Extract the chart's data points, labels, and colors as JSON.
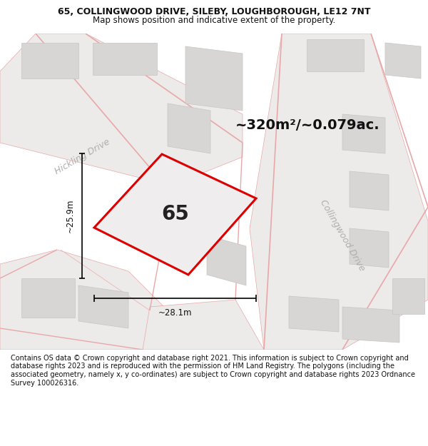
{
  "title_line1": "65, COLLINGWOOD DRIVE, SILEBY, LOUGHBOROUGH, LE12 7NT",
  "title_line2": "Map shows position and indicative extent of the property.",
  "footer": "Contains OS data © Crown copyright and database right 2021. This information is subject to Crown copyright and database rights 2023 and is reproduced with the permission of HM Land Registry. The polygons (including the associated geometry, namely x, y co-ordinates) are subject to Crown copyright and database rights 2023 Ordnance Survey 100026316.",
  "area_text": "~320m²/~0.079ac.",
  "dim_width": "~28.1m",
  "dim_height": "~25.9m",
  "plot_number": "65",
  "map_bg": "#f5f3f3",
  "building_color": "#d8d5d5",
  "building_edge": "#c8c5c5",
  "road_fill": "#edeaea",
  "road_line_color": "#e8a8a8",
  "plot_outline_color": "#dd0000",
  "plot_fill_color": "#f0edee",
  "street_label_color": "#b0adad",
  "title_color": "#111111",
  "footer_color": "#111111",
  "title_fontsize": 9,
  "subtitle_fontsize": 8.5,
  "footer_fontsize": 7.0,
  "area_fontsize": 14,
  "plot_label_fontsize": 20,
  "dim_fontsize": 8.5,
  "street_fontsize": 9
}
